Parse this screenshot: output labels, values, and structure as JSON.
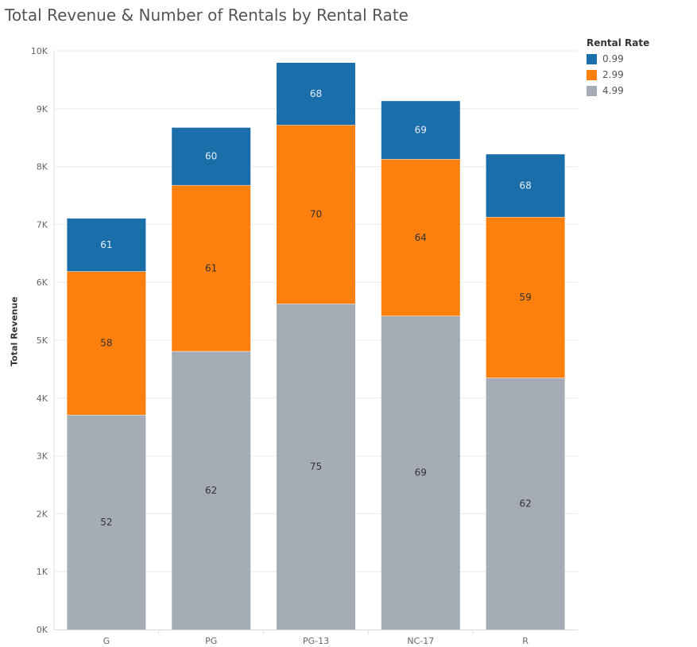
{
  "chart_data": {
    "type": "bar",
    "stacked": true,
    "title": "Total Revenue & Number of Rentals by Rental Rate",
    "xlabel": "",
    "ylabel": "Total Revenue",
    "ylim": [
      0,
      10000
    ],
    "y_ticks": [
      "0K",
      "1K",
      "2K",
      "3K",
      "4K",
      "5K",
      "6K",
      "7K",
      "8K",
      "9K",
      "10K"
    ],
    "categories": [
      "G",
      "PG",
      "PG-13",
      "NC-17",
      "R"
    ],
    "grid": true,
    "legend": {
      "title": "Rental Rate",
      "placement": "top-right"
    },
    "series": [
      {
        "name": "4.99",
        "color": "#a5acb6",
        "values": [
          3710,
          4810,
          5630,
          5420,
          4350
        ],
        "labels": [
          "52",
          "62",
          "75",
          "69",
          "62"
        ]
      },
      {
        "name": "2.99",
        "color": "#fd7f0d",
        "values": [
          2480,
          2870,
          3090,
          2710,
          2780
        ],
        "labels": [
          "58",
          "61",
          "70",
          "64",
          "59"
        ]
      },
      {
        "name": "0.99",
        "color": "#1a6eaa",
        "values": [
          920,
          1000,
          1080,
          1010,
          1090
        ],
        "labels": [
          "61",
          "60",
          "68",
          "69",
          "68"
        ]
      }
    ]
  }
}
